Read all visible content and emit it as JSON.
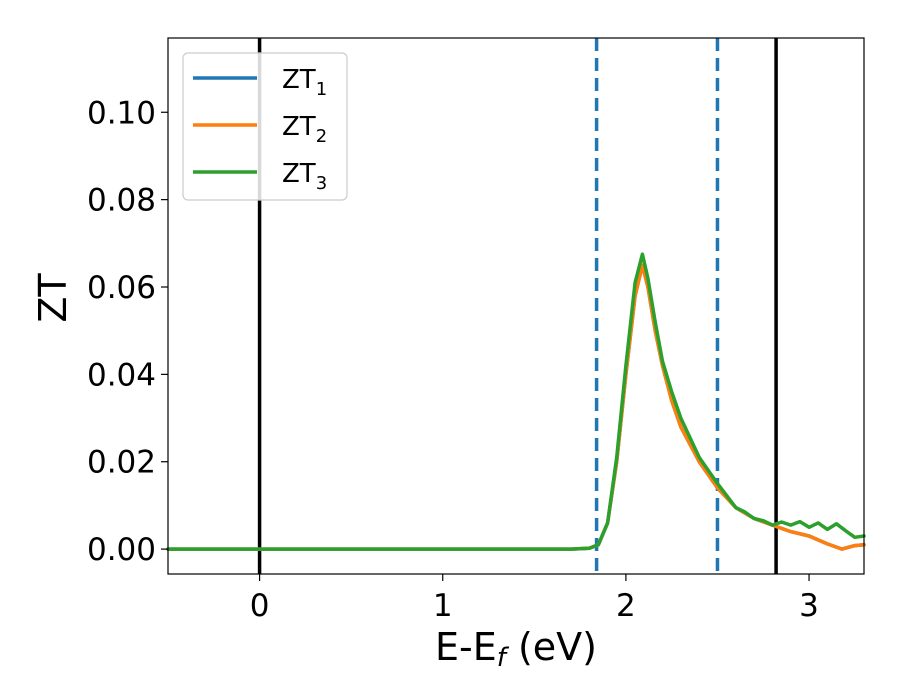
{
  "chart_data": {
    "type": "line",
    "xlabel": "E-E",
    "xlabel_sub": "f",
    "xlabel_unit": " (eV)",
    "ylabel": "ZT",
    "xlim": [
      -0.5,
      3.3
    ],
    "ylim": [
      -0.0057,
      0.117
    ],
    "xticks": [
      0,
      1,
      2,
      3
    ],
    "yticks": [
      0.0,
      0.02,
      0.04,
      0.06,
      0.08,
      0.1
    ],
    "ytick_labels": [
      "0.00",
      "0.02",
      "0.04",
      "0.06",
      "0.08",
      "0.10"
    ],
    "xtick_labels": [
      "0",
      "1",
      "2",
      "3"
    ],
    "grid": false,
    "legend_position": "top-left",
    "series": [
      {
        "name": "ZT",
        "name_sub": "1",
        "color": "#1f77b4",
        "x": [
          -0.5,
          1.7,
          1.8,
          1.85,
          1.9,
          1.95,
          2.0,
          2.05,
          2.09,
          2.12,
          2.16,
          2.2,
          2.25,
          2.3,
          2.4,
          2.5,
          2.6,
          2.7,
          2.8,
          2.9,
          3.0,
          3.1,
          3.18,
          3.25,
          3.3
        ],
        "y": [
          0.0,
          0.0,
          0.0002,
          0.001,
          0.006,
          0.02,
          0.04,
          0.058,
          0.065,
          0.06,
          0.05,
          0.042,
          0.034,
          0.028,
          0.02,
          0.014,
          0.0095,
          0.007,
          0.0055,
          0.004,
          0.003,
          0.0012,
          0.0,
          0.0008,
          0.001
        ]
      },
      {
        "name": "ZT",
        "name_sub": "2",
        "color": "#ff7f0e",
        "x": [
          -0.5,
          1.7,
          1.8,
          1.85,
          1.9,
          1.95,
          2.0,
          2.05,
          2.09,
          2.12,
          2.16,
          2.2,
          2.25,
          2.3,
          2.4,
          2.5,
          2.6,
          2.7,
          2.8,
          2.9,
          3.0,
          3.1,
          3.18,
          3.25,
          3.3
        ],
        "y": [
          0.0,
          0.0,
          0.0002,
          0.001,
          0.006,
          0.02,
          0.04,
          0.058,
          0.065,
          0.06,
          0.05,
          0.042,
          0.034,
          0.028,
          0.02,
          0.014,
          0.0095,
          0.007,
          0.0055,
          0.004,
          0.003,
          0.0012,
          0.0,
          0.0008,
          0.001
        ]
      },
      {
        "name": "ZT",
        "name_sub": "3",
        "color": "#2ca02c",
        "x": [
          -0.5,
          1.7,
          1.8,
          1.85,
          1.9,
          1.95,
          2.0,
          2.05,
          2.09,
          2.12,
          2.16,
          2.2,
          2.25,
          2.3,
          2.4,
          2.5,
          2.6,
          2.65,
          2.7,
          2.75,
          2.8,
          2.85,
          2.9,
          2.95,
          3.0,
          3.05,
          3.1,
          3.15,
          3.2,
          3.25,
          3.3
        ],
        "y": [
          0.0,
          0.0,
          0.0002,
          0.001,
          0.006,
          0.021,
          0.042,
          0.061,
          0.0675,
          0.062,
          0.052,
          0.043,
          0.036,
          0.03,
          0.021,
          0.015,
          0.0095,
          0.0085,
          0.007,
          0.0065,
          0.0055,
          0.0062,
          0.0055,
          0.0063,
          0.005,
          0.006,
          0.0045,
          0.0058,
          0.0042,
          0.0027,
          0.003
        ]
      }
    ],
    "vlines": [
      {
        "x": 0.0,
        "style": "solid",
        "color": "#000000"
      },
      {
        "x": 1.84,
        "style": "dashed",
        "color": "#1f77b4"
      },
      {
        "x": 2.5,
        "style": "dashed",
        "color": "#1f77b4"
      },
      {
        "x": 2.82,
        "style": "solid",
        "color": "#000000"
      }
    ]
  }
}
